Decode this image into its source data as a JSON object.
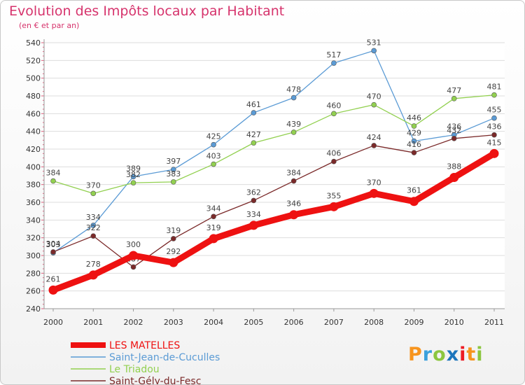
{
  "header": {
    "title": "Evolution des Impôts locaux par Habitant",
    "subtitle": "(en € et par an)"
  },
  "logo": {
    "text": "Proxiti",
    "letters": [
      {
        "ch": "P",
        "color": "#f7941d"
      },
      {
        "ch": "r",
        "color": "#3aa0dc"
      },
      {
        "ch": "o",
        "color": "#8cc63f"
      },
      {
        "ch": "x",
        "color": "#1c75bc"
      },
      {
        "ch": "i",
        "color": "#ed1c24"
      },
      {
        "ch": "t",
        "color": "#f7941d"
      },
      {
        "ch": "i",
        "color": "#8cc63f"
      }
    ]
  },
  "chart_data": {
    "type": "line",
    "title": "Evolution des Impôts locaux par Habitant",
    "subtitle": "(en € et par an)",
    "x": [
      "2000",
      "2001",
      "2002",
      "2003",
      "2004",
      "2005",
      "2006",
      "2007",
      "2008",
      "2009",
      "2010",
      "2011"
    ],
    "ylim": [
      240,
      540
    ],
    "yticks": [
      240,
      260,
      280,
      300,
      320,
      340,
      360,
      380,
      400,
      420,
      440,
      460,
      480,
      500,
      520,
      540
    ],
    "grid": "horizontal",
    "legend_position": "bottom-left",
    "series": [
      {
        "name": "LES MATELLES",
        "color": "#ee1111",
        "width": "thick",
        "values": [
          261,
          278,
          300,
          292,
          319,
          334,
          346,
          355,
          370,
          361,
          388,
          415
        ]
      },
      {
        "name": "Saint-Jean-de-Cuculles",
        "color": "#5b9bd5",
        "width": "thin",
        "values": [
          303,
          334,
          389,
          397,
          425,
          461,
          478,
          517,
          531,
          429,
          436,
          455
        ]
      },
      {
        "name": "Le Triadou",
        "color": "#92d050",
        "width": "thin",
        "values": [
          384,
          370,
          382,
          383,
          403,
          427,
          439,
          460,
          470,
          446,
          477,
          481
        ]
      },
      {
        "name": "Saint-Gély-du-Fesc",
        "color": "#7b2a2a",
        "width": "thin",
        "values": [
          304,
          322,
          287,
          319,
          344,
          362,
          384,
          406,
          424,
          416,
          432,
          436
        ]
      }
    ]
  }
}
